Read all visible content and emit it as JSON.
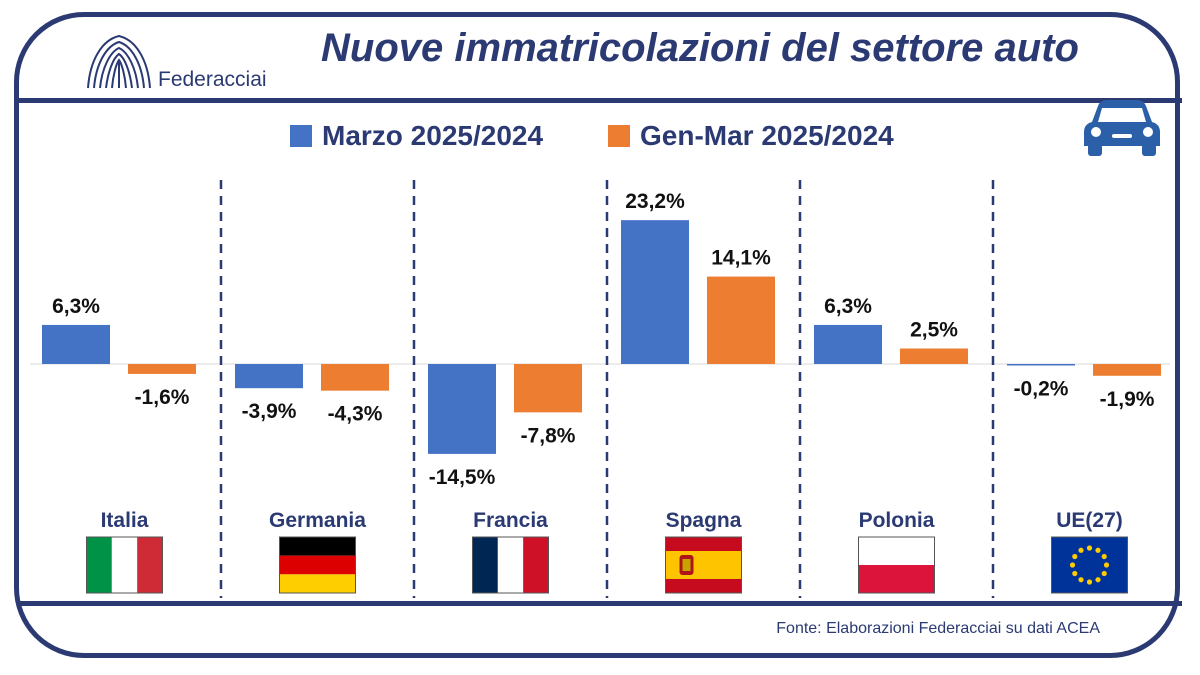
{
  "header": {
    "title": "Nuove immatricolazioni del settore auto",
    "logo_text": "Federacciai",
    "logo_icon": "federacciai-logo-icon",
    "car_icon": "car-icon"
  },
  "footer": {
    "source": "Fonte: Elaborazioni Federacciai su dati ACEA"
  },
  "colors": {
    "frame": "#2b3a73",
    "series_1": "#4472c4",
    "series_2": "#ed7d31"
  },
  "chart_data": {
    "type": "bar",
    "title": "Nuove immatricolazioni del settore auto",
    "xlabel": "",
    "ylabel": "",
    "categories": [
      "Italia",
      "Germania",
      "Francia",
      "Spagna",
      "Polonia",
      "UE(27)"
    ],
    "series": [
      {
        "name": "Marzo 2025/2024",
        "values": [
          6.3,
          -3.9,
          -14.5,
          23.2,
          6.3,
          -0.2
        ],
        "labels": [
          "6,3%",
          "-3,9%",
          "-14,5%",
          "23,2%",
          "6,3%",
          "-0,2%"
        ]
      },
      {
        "name": "Gen-Mar 2025/2024",
        "values": [
          -1.6,
          -4.3,
          -7.8,
          14.1,
          2.5,
          -1.9
        ],
        "labels": [
          "-1,6%",
          "-4,3%",
          "-7,8%",
          "14,1%",
          "2,5%",
          "-1,9%"
        ]
      }
    ],
    "legend_position": "top",
    "grid": false,
    "flags": [
      "italy-flag-icon",
      "germany-flag-icon",
      "france-flag-icon",
      "spain-flag-icon",
      "poland-flag-icon",
      "eu-flag-icon"
    ]
  }
}
